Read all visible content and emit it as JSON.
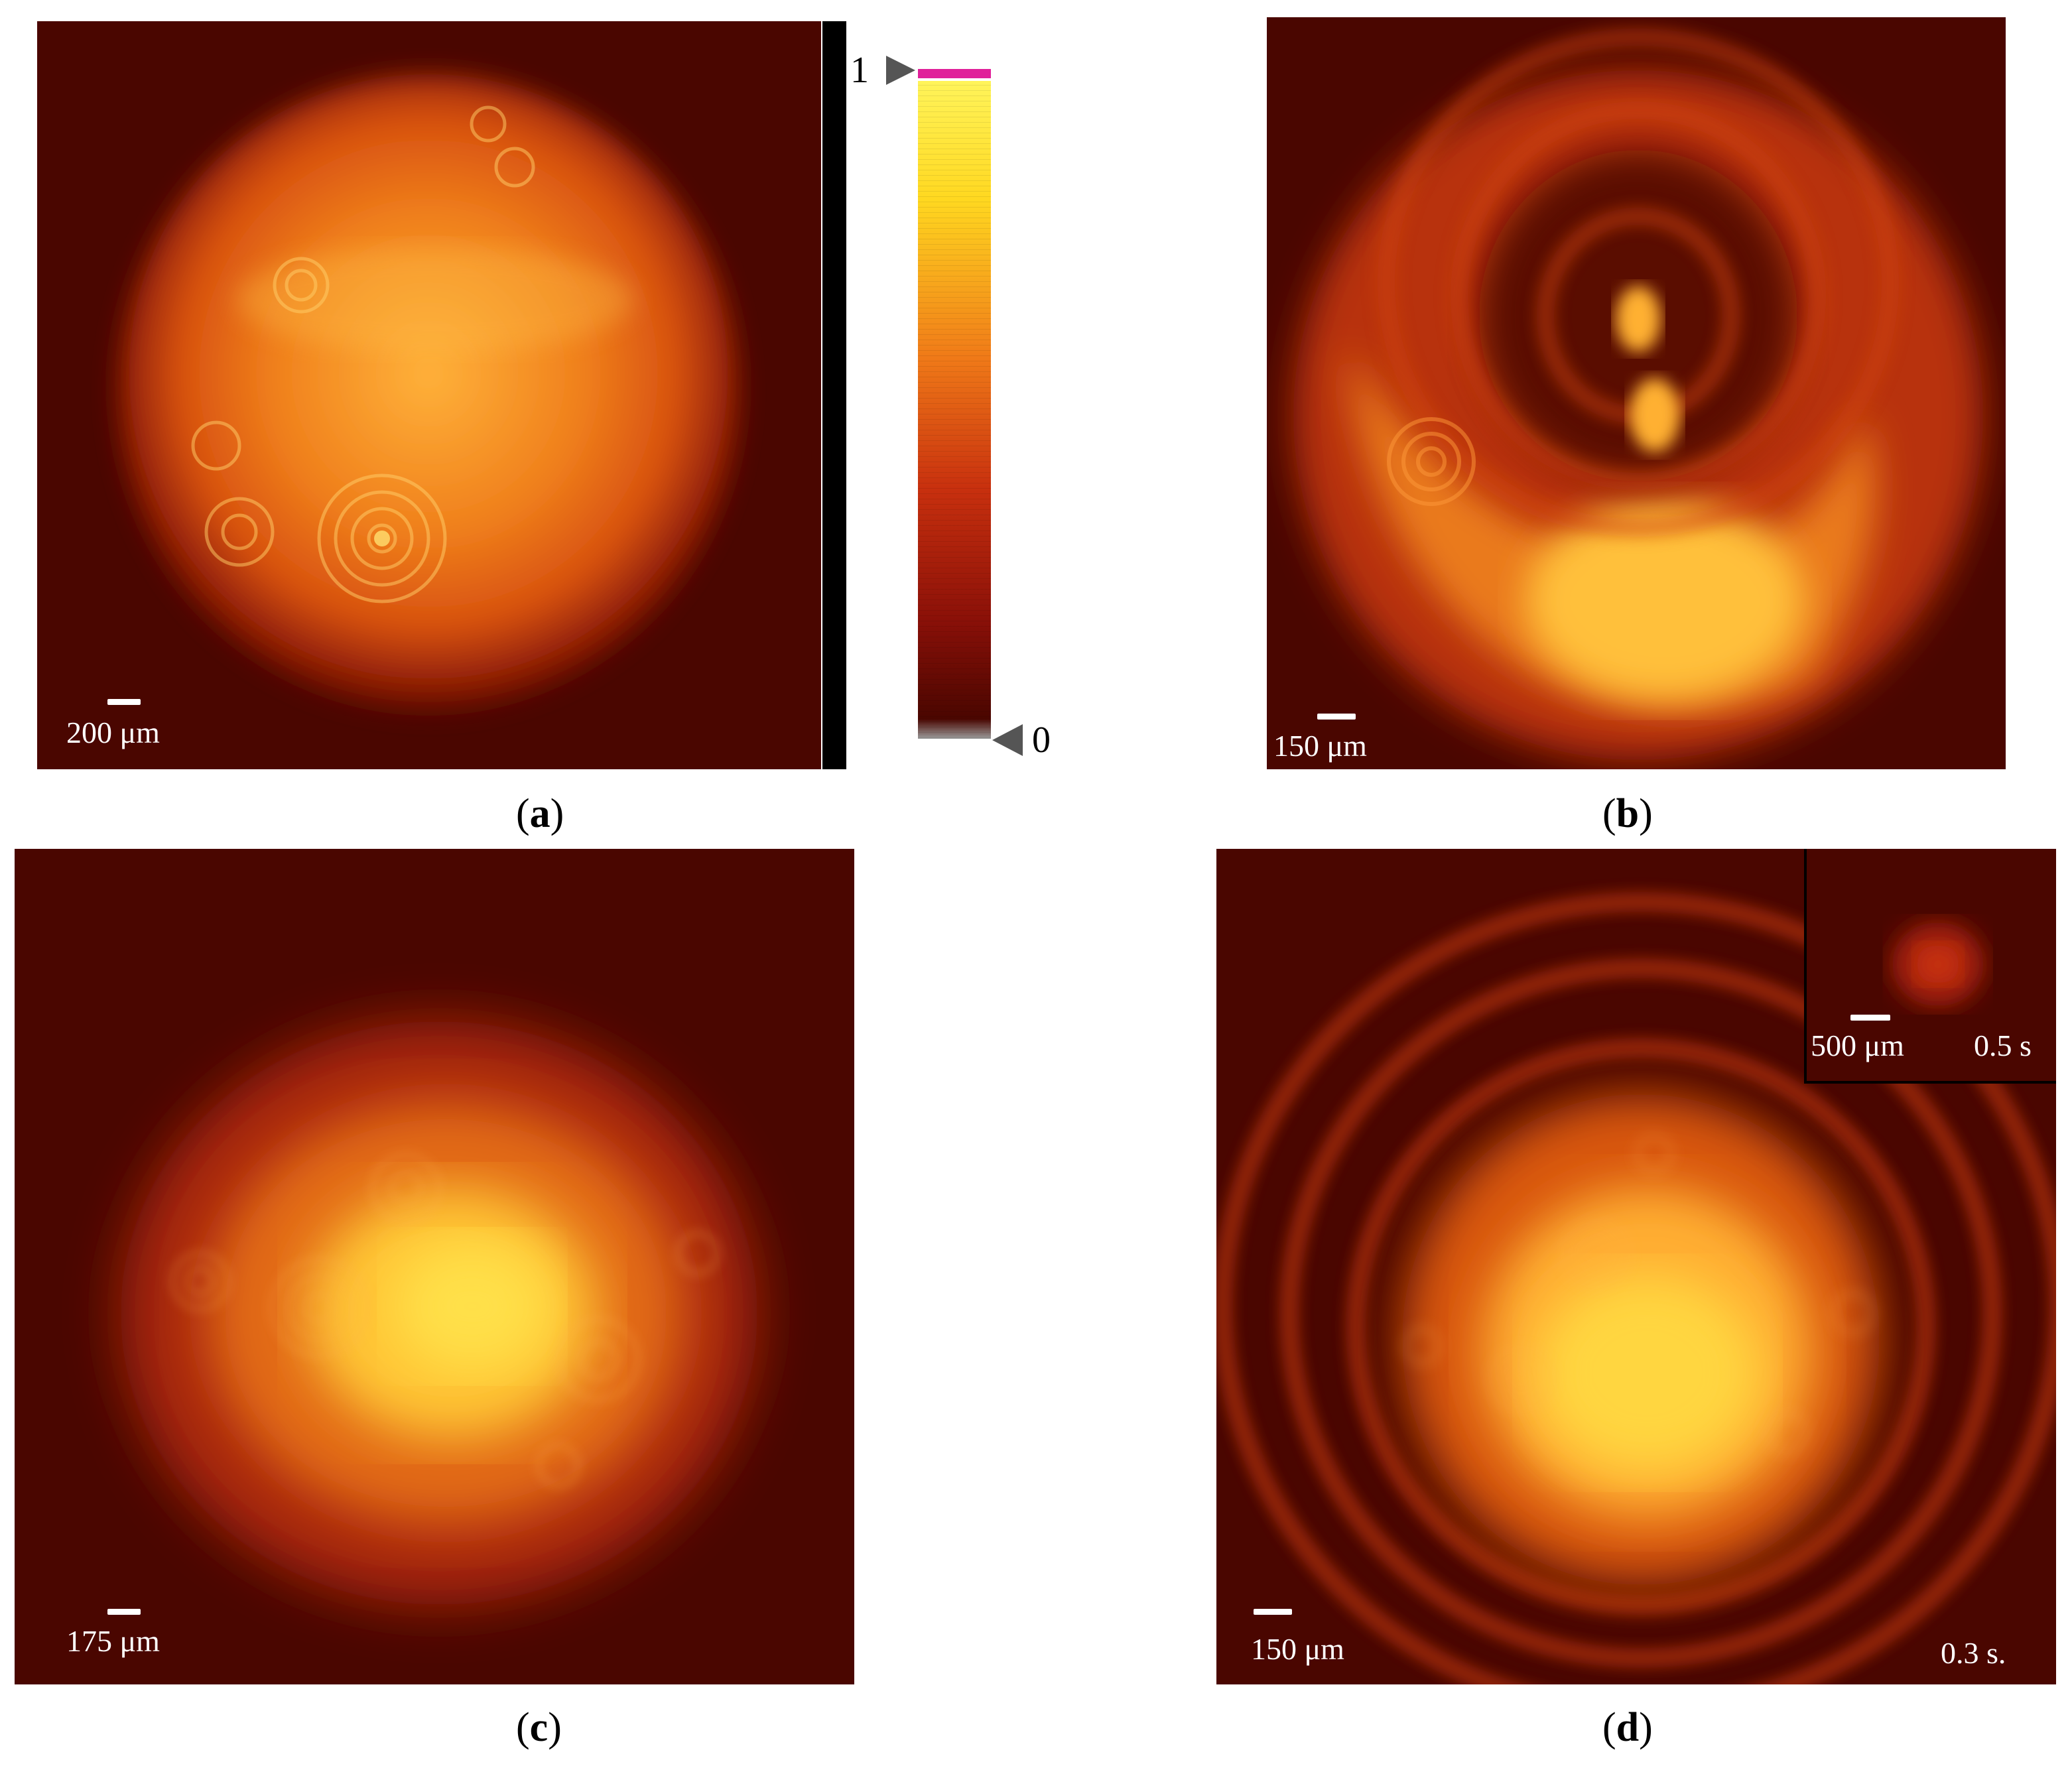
{
  "panels": [
    {
      "id": "a",
      "scalebar_label": "200 μm",
      "caption_letter": "a"
    },
    {
      "id": "b",
      "scalebar_label": "150 μm",
      "caption_letter": "b"
    },
    {
      "id": "c",
      "scalebar_label": "175 μm",
      "caption_letter": "c"
    },
    {
      "id": "d",
      "scalebar_label": "150 μm",
      "caption_letter": "d",
      "time_label": "0.3 s."
    }
  ],
  "inset": {
    "scalebar_label": "500 μm",
    "time_label": "0.5 s"
  },
  "colorbar": {
    "max_label": "1",
    "min_label": "0",
    "top_marker_color": "#e0209a",
    "colors": [
      "#4a0600",
      "#8a1008",
      "#c8300e",
      "#f07a18",
      "#ffd820",
      "#fff45a"
    ]
  },
  "caption_parens": {
    "open": "(",
    "close": ")"
  }
}
